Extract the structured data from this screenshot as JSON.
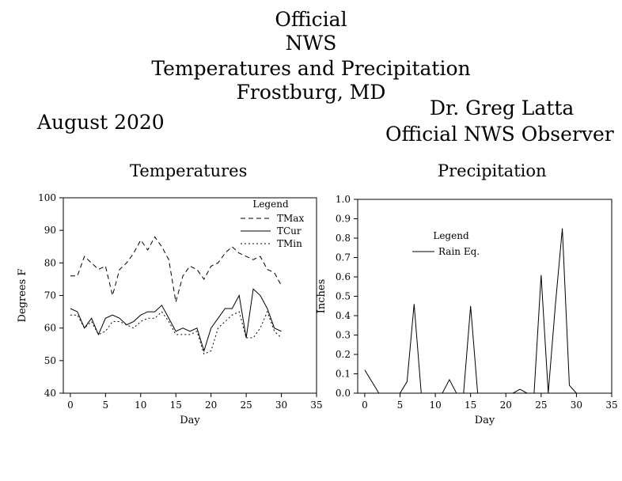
{
  "header": {
    "title_lines": [
      "Official",
      "NWS",
      "Temperatures and Precipitation",
      "Frostburg, MD"
    ],
    "month": "August 2020",
    "observer_name": "Dr. Greg Latta",
    "observer_title": "Official NWS Observer"
  },
  "chart_data": [
    {
      "type": "line",
      "title": "Temperatures",
      "xlabel": "Day",
      "ylabel": "Degrees F",
      "xlim": [
        -1,
        35
      ],
      "ylim": [
        40,
        100
      ],
      "xticks": [
        0,
        5,
        10,
        15,
        20,
        25,
        30,
        35
      ],
      "yticks": [
        40,
        50,
        60,
        70,
        80,
        90,
        100
      ],
      "legend": {
        "title": "Legend",
        "placement": "top-right"
      },
      "x": [
        0,
        1,
        2,
        3,
        4,
        5,
        6,
        7,
        8,
        9,
        10,
        11,
        12,
        13,
        14,
        15,
        16,
        17,
        18,
        19,
        20,
        21,
        22,
        23,
        24,
        25,
        26,
        27,
        28,
        29,
        30
      ],
      "series": [
        {
          "name": "TMax",
          "style": "dashed",
          "values": [
            76,
            76,
            82,
            80,
            78,
            79,
            70,
            78,
            80,
            83,
            87,
            84,
            88,
            85,
            81,
            68,
            76,
            79,
            78,
            75,
            79,
            80,
            83,
            85,
            83,
            82,
            81,
            82,
            78,
            77,
            73
          ]
        },
        {
          "name": "TCur",
          "style": "solid",
          "values": [
            66,
            65,
            60,
            63,
            58,
            63,
            64,
            63,
            61,
            62,
            64,
            65,
            65,
            67,
            63,
            59,
            60,
            59,
            60,
            53,
            60,
            63,
            66,
            66,
            70,
            57,
            72,
            70,
            66,
            60,
            59
          ]
        },
        {
          "name": "TMin",
          "style": "dotted",
          "values": [
            64,
            64,
            60,
            62,
            58,
            59,
            62,
            62,
            61,
            60,
            62,
            63,
            63,
            65,
            62,
            58,
            58,
            58,
            59,
            52,
            53,
            60,
            62,
            64,
            65,
            57,
            57,
            60,
            65,
            59,
            57
          ]
        }
      ]
    },
    {
      "type": "line",
      "title": "Precipitation",
      "xlabel": "Day",
      "ylabel": "Inches",
      "xlim": [
        -1,
        35
      ],
      "ylim": [
        0,
        1
      ],
      "xticks": [
        0,
        5,
        10,
        15,
        20,
        25,
        30,
        35
      ],
      "yticks": [
        0.0,
        0.1,
        0.2,
        0.3,
        0.4,
        0.5,
        0.6,
        0.7,
        0.8,
        0.9,
        1.0
      ],
      "legend": {
        "title": "Legend",
        "placement": "upper-middle"
      },
      "x": [
        0,
        1,
        2,
        3,
        4,
        5,
        6,
        7,
        8,
        9,
        10,
        11,
        12,
        13,
        14,
        15,
        16,
        17,
        18,
        19,
        20,
        21,
        22,
        23,
        24,
        25,
        26,
        27,
        28,
        29,
        30
      ],
      "series": [
        {
          "name": "Rain Eq.",
          "style": "solid",
          "values": [
            0.12,
            0.06,
            0,
            0,
            0,
            0,
            0.06,
            0.46,
            0,
            0,
            0,
            0,
            0.07,
            0,
            0,
            0.45,
            0,
            0,
            0,
            0,
            0,
            0,
            0.02,
            0,
            0,
            0.61,
            0,
            0.45,
            0.85,
            0.04,
            0
          ]
        }
      ]
    }
  ]
}
